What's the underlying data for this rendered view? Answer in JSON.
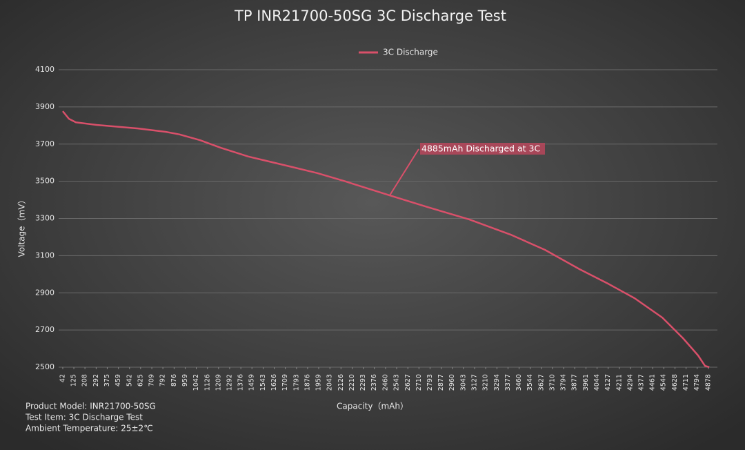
{
  "chart_data": {
    "type": "line",
    "title": "TP INR21700-50SG 3C Discharge Test",
    "xlabel": "Capacity（mAh）",
    "ylabel": "Voltage（mV）",
    "annotation": "4885mAh Discharged at 3C",
    "notes": [
      "Product Model: INR21700-50SG",
      "Test Item: 3C Discharge Test",
      "Ambient Temperature: 25±2℃"
    ],
    "legend": "top",
    "grid": true,
    "xlim": [
      42,
      4920
    ],
    "ylim": [
      2500,
      4100
    ],
    "yticks": [
      2500,
      2700,
      2900,
      3100,
      3300,
      3500,
      3700,
      3900,
      4100
    ],
    "xticks": [
      42,
      125,
      208,
      292,
      375,
      459,
      542,
      625,
      709,
      792,
      876,
      959,
      1042,
      1126,
      1209,
      1292,
      1376,
      1459,
      1543,
      1626,
      1709,
      1793,
      1876,
      1959,
      2043,
      2126,
      2210,
      2293,
      2376,
      2460,
      2543,
      2627,
      2710,
      2793,
      2877,
      2960,
      3043,
      3127,
      3210,
      3294,
      3377,
      3460,
      3544,
      3627,
      3710,
      3794,
      3877,
      3961,
      4044,
      4127,
      4211,
      4294,
      4377,
      4461,
      4544,
      4628,
      4711,
      4794,
      4878
    ],
    "series": [
      {
        "name": "3C Discharge",
        "color": "#d9506a",
        "x": [
          42,
          88,
          140,
          295,
          605,
          812,
          915,
          1070,
          1225,
          1432,
          1742,
          1949,
          2155,
          2491,
          2775,
          3085,
          3396,
          3654,
          3913,
          4119,
          4326,
          4533,
          4688,
          4801,
          4853,
          4885
        ],
        "values": [
          3877,
          3836,
          3817,
          3803,
          3784,
          3766,
          3752,
          3721,
          3680,
          3633,
          3580,
          3544,
          3500,
          3424,
          3361,
          3295,
          3213,
          3131,
          3027,
          2952,
          2871,
          2767,
          2656,
          2563,
          2507,
          2500
        ]
      }
    ]
  }
}
